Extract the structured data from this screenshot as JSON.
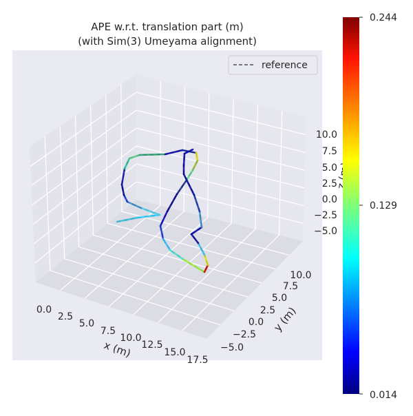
{
  "chart_data": {
    "type": "line",
    "projection": "3d",
    "title_line1": "APE w.r.t. translation part (m)",
    "title_line2": "(with Sim(3) Umeyama alignment)",
    "xlabel": "x (m)",
    "ylabel": "y (m)",
    "zlabel": "z (m)",
    "x_ticks": [
      "0.0",
      "2.5",
      "5.0",
      "7.5",
      "10.0",
      "12.5",
      "15.0",
      "17.5"
    ],
    "y_ticks": [
      "−5.0",
      "−2.5",
      "0.0",
      "2.5",
      "5.0",
      "7.5",
      "10.0"
    ],
    "z_ticks": [
      "10.0",
      "7.5",
      "5.0",
      "2.5",
      "0.0",
      "−2.5",
      "−5.0"
    ],
    "legend": [
      {
        "label": "reference",
        "style": "dashed",
        "color": "#666666"
      }
    ],
    "legend_position": "top-right",
    "colorbar": {
      "min": 0.014,
      "mid": 0.129,
      "max": 0.244,
      "labels": [
        "0.244",
        "0.129",
        "0.014"
      ],
      "colormap": "jet"
    },
    "grid": true
  }
}
